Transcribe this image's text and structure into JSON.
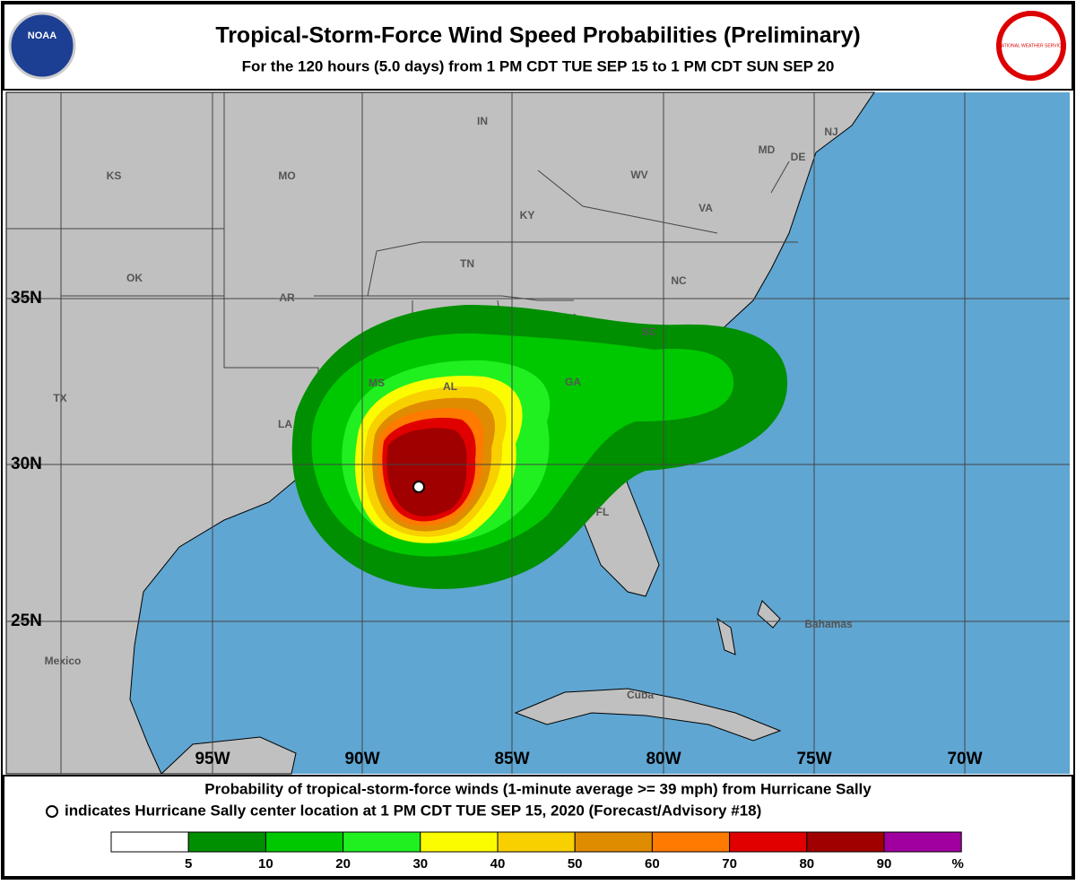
{
  "header": {
    "title": "Tropical-Storm-Force Wind Speed Probabilities (Preliminary)",
    "subtitle": "For the 120 hours (5.0 days) from 1 PM CDT TUE SEP 15 to 1 PM CDT SUN SEP 20",
    "left_logo": "NOAA",
    "right_logo": "NATIONAL WEATHER SERVICE"
  },
  "map": {
    "latitudes": [
      "35N",
      "30N",
      "25N"
    ],
    "longitudes": [
      "95W",
      "90W",
      "85W",
      "80W",
      "75W",
      "70W"
    ],
    "labels": [
      "KS",
      "MO",
      "IN",
      "KY",
      "WV",
      "VA",
      "MD",
      "DE",
      "NJ",
      "OK",
      "AR",
      "TN",
      "NC",
      "SC",
      "GA",
      "AL",
      "MS",
      "LA",
      "TX",
      "FL",
      "Bahamas",
      "Mexico",
      "Cuba"
    ]
  },
  "footer": {
    "line1": "Probability of tropical-storm-force winds (1-minute average >= 39 mph) from Hurricane Sally",
    "line2": "indicates Hurricane Sally center location at 1 PM CDT TUE SEP 15, 2020 (Forecast/Advisory #18)"
  },
  "legend": {
    "ticks": [
      5,
      10,
      20,
      30,
      40,
      50,
      60,
      70,
      80,
      90
    ],
    "unit": "%",
    "colors": [
      "#ffffff",
      "#008f00",
      "#00c800",
      "#20f020",
      "#fcfc00",
      "#f8d000",
      "#e08c00",
      "#ff7a00",
      "#e00000",
      "#a00000",
      "#a000a0"
    ]
  }
}
